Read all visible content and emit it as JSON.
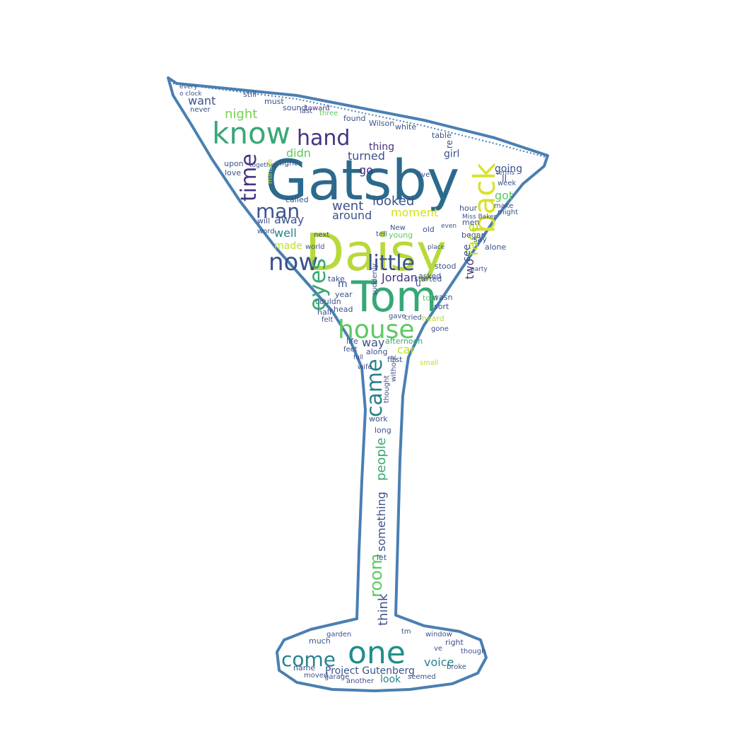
{
  "colors": {
    "outline": "#4a7fb2",
    "background": "#ffffff",
    "palette": [
      "#2a6d8f",
      "#b5d93a",
      "#3aa776",
      "#1f9e89",
      "#463480",
      "#3b528b",
      "#5ec962",
      "#fde725",
      "#26828e"
    ]
  },
  "words": [
    {
      "text": "Gatsby",
      "color": "#2c6a8d"
    },
    {
      "text": "Daisy",
      "color": "#b8d93b"
    },
    {
      "text": "Tom",
      "color": "#37a776"
    },
    {
      "text": "one",
      "color": "#1f8f8a"
    },
    {
      "text": "know",
      "color": "#3aa776"
    },
    {
      "text": "back",
      "color": "#d9e12c"
    },
    {
      "text": "house",
      "color": "#5ec962"
    },
    {
      "text": "hand",
      "color": "#463480"
    },
    {
      "text": "now",
      "color": "#3b528b"
    },
    {
      "text": "little",
      "color": "#3b528b"
    },
    {
      "text": "time",
      "color": "#463480"
    },
    {
      "text": "man",
      "color": "#3b528b"
    },
    {
      "text": "came",
      "color": "#26828e"
    },
    {
      "text": "eyes",
      "color": "#3aa776"
    },
    {
      "text": "come",
      "color": "#26828e"
    },
    {
      "text": "face",
      "color": "#bddf26"
    },
    {
      "text": "looked",
      "color": "#3b528b"
    },
    {
      "text": "went",
      "color": "#3b528b"
    },
    {
      "text": "around",
      "color": "#3b528b"
    },
    {
      "text": "moment",
      "color": "#d5e21a"
    },
    {
      "text": "Jordan",
      "color": "#463480"
    },
    {
      "text": "room",
      "color": "#5ec962"
    },
    {
      "text": "think",
      "color": "#3b528b"
    },
    {
      "text": "voice",
      "color": "#26828e"
    },
    {
      "text": "Project Gutenberg",
      "color": "#3b528b"
    },
    {
      "text": "night",
      "color": "#7ad151"
    },
    {
      "text": "want",
      "color": "#3b528b"
    },
    {
      "text": "going",
      "color": "#3b528b"
    },
    {
      "text": "got",
      "color": "#5ec962"
    },
    {
      "text": "away",
      "color": "#3b528b"
    },
    {
      "text": "well",
      "color": "#26828e"
    },
    {
      "text": "made",
      "color": "#bddf26"
    },
    {
      "text": "girl",
      "color": "#3b528b"
    },
    {
      "text": "turned",
      "color": "#3b528b"
    },
    {
      "text": "thing",
      "color": "#463480"
    },
    {
      "text": "go",
      "color": "#463480"
    },
    {
      "text": "didn",
      "color": "#5ec962"
    },
    {
      "text": "two",
      "color": "#463480"
    },
    {
      "text": "see",
      "color": "#3b528b"
    },
    {
      "text": "way",
      "color": "#3b528b"
    },
    {
      "text": "car",
      "color": "#bddf26"
    },
    {
      "text": "look",
      "color": "#26828e"
    },
    {
      "text": "people",
      "color": "#3aa776"
    },
    {
      "text": "something",
      "color": "#3b528b"
    },
    {
      "text": "afternoon",
      "color": "#3aa776"
    },
    {
      "text": "Wilson",
      "color": "#3b528b"
    },
    {
      "text": "toward",
      "color": "#463480"
    },
    {
      "text": "must",
      "color": "#3b528b"
    },
    {
      "text": "still",
      "color": "#3b528b"
    },
    {
      "text": "last",
      "color": "#3b528b"
    },
    {
      "text": "three",
      "color": "#5ec962"
    },
    {
      "text": "found",
      "color": "#3b528b"
    },
    {
      "text": "white",
      "color": "#3b528b"
    },
    {
      "text": "table",
      "color": "#3b528b"
    },
    {
      "text": "men",
      "color": "#3b528b"
    },
    {
      "text": "hour",
      "color": "#3b528b"
    },
    {
      "text": "began",
      "color": "#3b528b"
    },
    {
      "text": "say",
      "color": "#3b528b"
    },
    {
      "text": "alone",
      "color": "#3b528b"
    },
    {
      "text": "asked",
      "color": "#3b528b"
    },
    {
      "text": "heard",
      "color": "#bddf26"
    },
    {
      "text": "told",
      "color": "#5ec962"
    },
    {
      "text": "wasn",
      "color": "#3b528b"
    },
    {
      "text": "sort",
      "color": "#3b528b"
    },
    {
      "text": "make",
      "color": "#3b528b"
    },
    {
      "text": "week",
      "color": "#3b528b"
    },
    {
      "text": "might",
      "color": "#3b528b"
    },
    {
      "text": "first",
      "color": "#3b528b"
    },
    {
      "text": "along",
      "color": "#3b528b"
    },
    {
      "text": "life",
      "color": "#3b528b"
    },
    {
      "text": "feet",
      "color": "#3b528b"
    },
    {
      "text": "head",
      "color": "#3b528b"
    },
    {
      "text": "half",
      "color": "#3b528b"
    },
    {
      "text": "felt",
      "color": "#3b528b"
    },
    {
      "text": "year",
      "color": "#3b528b"
    },
    {
      "text": "couldn",
      "color": "#3b528b"
    },
    {
      "text": "take",
      "color": "#3b528b"
    },
    {
      "text": "upon",
      "color": "#3b528b"
    },
    {
      "text": "love",
      "color": "#3b528b"
    },
    {
      "text": "light",
      "color": "#3b528b"
    },
    {
      "text": "will",
      "color": "#3b528b"
    },
    {
      "text": "word",
      "color": "#3b528b"
    },
    {
      "text": "called",
      "color": "#3b528b"
    },
    {
      "text": "world",
      "color": "#3b528b"
    },
    {
      "text": "next",
      "color": "#3b528b"
    },
    {
      "text": "old",
      "color": "#3b528b"
    },
    {
      "text": "young",
      "color": "#5ec962"
    },
    {
      "text": "stood",
      "color": "#3b528b"
    },
    {
      "text": "started",
      "color": "#3b528b"
    },
    {
      "text": "work",
      "color": "#3b528b"
    },
    {
      "text": "long",
      "color": "#3b528b"
    },
    {
      "text": "let",
      "color": "#3b528b"
    },
    {
      "text": "much",
      "color": "#3b528b"
    },
    {
      "text": "name",
      "color": "#3b528b"
    },
    {
      "text": "moved",
      "color": "#3b528b"
    },
    {
      "text": "garage",
      "color": "#3b528b"
    },
    {
      "text": "another",
      "color": "#3b528b"
    },
    {
      "text": "seemed",
      "color": "#3b528b"
    },
    {
      "text": "though",
      "color": "#3b528b"
    },
    {
      "text": "right",
      "color": "#3b528b"
    },
    {
      "text": "window",
      "color": "#3b528b"
    },
    {
      "text": "garden",
      "color": "#3b528b"
    },
    {
      "text": "broke",
      "color": "#3b528b"
    },
    {
      "text": "every",
      "color": "#3b528b"
    },
    {
      "text": "o clock",
      "color": "#3b528b"
    },
    {
      "text": "never",
      "color": "#3b528b"
    },
    {
      "text": "together",
      "color": "#3b528b"
    },
    {
      "text": "sound",
      "color": "#3b528b"
    },
    {
      "text": "minute",
      "color": "#bddf26"
    },
    {
      "text": "five",
      "color": "#3b528b"
    },
    {
      "text": "New",
      "color": "#3b528b"
    },
    {
      "text": "tell",
      "color": "#3b528b"
    },
    {
      "text": "suddenly",
      "color": "#3b528b"
    },
    {
      "text": "cried",
      "color": "#3b528b"
    },
    {
      "text": "gave",
      "color": "#3b528b"
    },
    {
      "text": "thought",
      "color": "#3b528b"
    },
    {
      "text": "without",
      "color": "#3b528b"
    },
    {
      "text": "small",
      "color": "#bddf26"
    },
    {
      "text": "wife",
      "color": "#3b528b"
    },
    {
      "text": "full",
      "color": "#3b528b"
    },
    {
      "text": "gone",
      "color": "#3b528b"
    },
    {
      "text": "even",
      "color": "#3b528b"
    },
    {
      "text": "place",
      "color": "#3b528b"
    },
    {
      "text": "Miss Baker",
      "color": "#3b528b"
    },
    {
      "text": "party",
      "color": "#3b528b"
    },
    {
      "text": "terms",
      "color": "#3b528b"
    },
    {
      "text": "ll",
      "color": "#3b528b"
    },
    {
      "text": "re",
      "color": "#3b528b"
    },
    {
      "text": "u",
      "color": "#3b528b"
    },
    {
      "text": "m",
      "color": "#3b528b"
    },
    {
      "text": "tm",
      "color": "#3b528b"
    },
    {
      "text": "ve",
      "color": "#3b528b"
    }
  ]
}
